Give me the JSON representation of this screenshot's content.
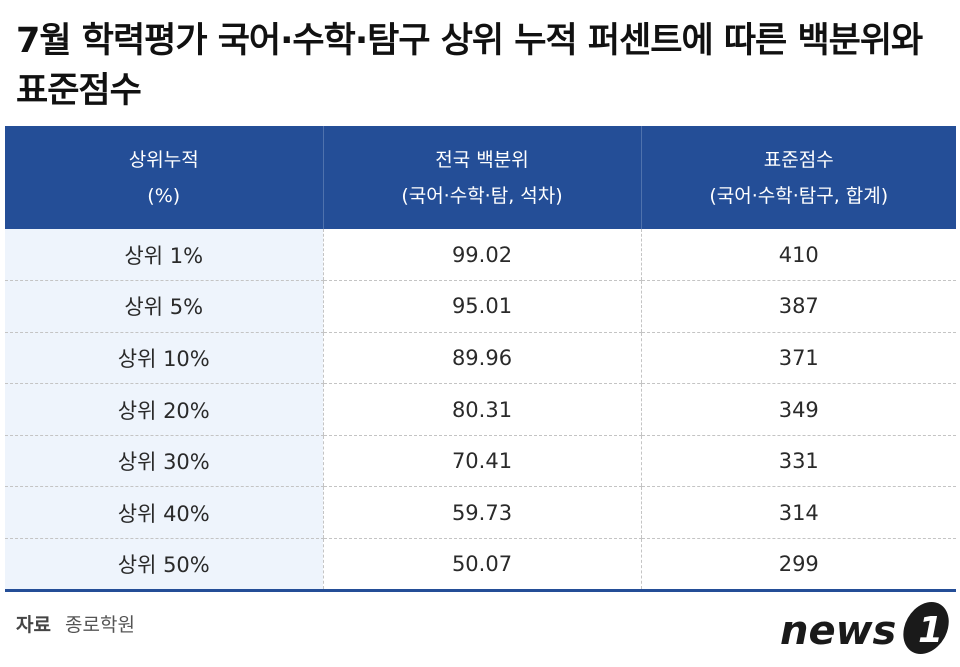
{
  "title": "7월 학력평가 국어·수학·탐구 상위 누적 퍼센트에 따른 백분위와 표준점수",
  "table": {
    "headers": [
      {
        "line1": "상위누적",
        "line2": "(%)"
      },
      {
        "line1": "전국 백분위",
        "line2": "(국어·수학·탐, 석차)"
      },
      {
        "line1": "표준점수",
        "line2": "(국어·수학·탐구, 합계)"
      }
    ],
    "rows": [
      {
        "rank": "상위 1%",
        "percentile": "99.02",
        "score": "410"
      },
      {
        "rank": "상위 5%",
        "percentile": "95.01",
        "score": "387"
      },
      {
        "rank": "상위 10%",
        "percentile": "89.96",
        "score": "371"
      },
      {
        "rank": "상위 20%",
        "percentile": "80.31",
        "score": "349"
      },
      {
        "rank": "상위 30%",
        "percentile": "70.41",
        "score": "331"
      },
      {
        "rank": "상위 40%",
        "percentile": "59.73",
        "score": "314"
      },
      {
        "rank": "상위 50%",
        "percentile": "50.07",
        "score": "299"
      }
    ]
  },
  "source": {
    "label": "자료",
    "value": "종로학원"
  },
  "logo": {
    "text": "news",
    "mark": "1",
    "color_text": "#1a1a1a",
    "color_mark": "#1a1a1a"
  },
  "colors": {
    "header_bg": "#244e97",
    "first_col_bg": "#eef4fc"
  }
}
